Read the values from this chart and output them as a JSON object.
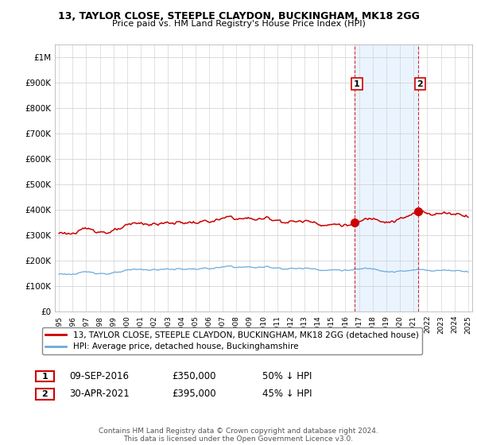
{
  "title": "13, TAYLOR CLOSE, STEEPLE CLAYDON, BUCKINGHAM, MK18 2GG",
  "subtitle": "Price paid vs. HM Land Registry's House Price Index (HPI)",
  "ylim": [
    0,
    1050000
  ],
  "yticks": [
    0,
    100000,
    200000,
    300000,
    400000,
    500000,
    600000,
    700000,
    800000,
    900000,
    1000000
  ],
  "ytick_labels": [
    "£0",
    "£100K",
    "£200K",
    "£300K",
    "£400K",
    "£500K",
    "£600K",
    "£700K",
    "£800K",
    "£900K",
    "£1M"
  ],
  "hpi_color": "#6aabdc",
  "price_color": "#cc0000",
  "vline_color": "#cc0000",
  "shade_color": "#ddeeff",
  "sale1_date": 2016.69,
  "sale1_price": 350000,
  "sale1_label": "1",
  "sale2_date": 2021.33,
  "sale2_price": 395000,
  "sale2_label": "2",
  "legend_line1": "13, TAYLOR CLOSE, STEEPLE CLAYDON, BUCKINGHAM, MK18 2GG (detached house)",
  "legend_line2": "HPI: Average price, detached house, Buckinghamshire",
  "ann1_box": "1",
  "ann1_date": "09-SEP-2016",
  "ann1_price": "£350,000",
  "ann1_pct": "50% ↓ HPI",
  "ann2_box": "2",
  "ann2_date": "30-APR-2021",
  "ann2_price": "£395,000",
  "ann2_pct": "45% ↓ HPI",
  "footer": "Contains HM Land Registry data © Crown copyright and database right 2024.\nThis data is licensed under the Open Government Licence v3.0.",
  "background_color": "#ffffff",
  "grid_color": "#cccccc"
}
